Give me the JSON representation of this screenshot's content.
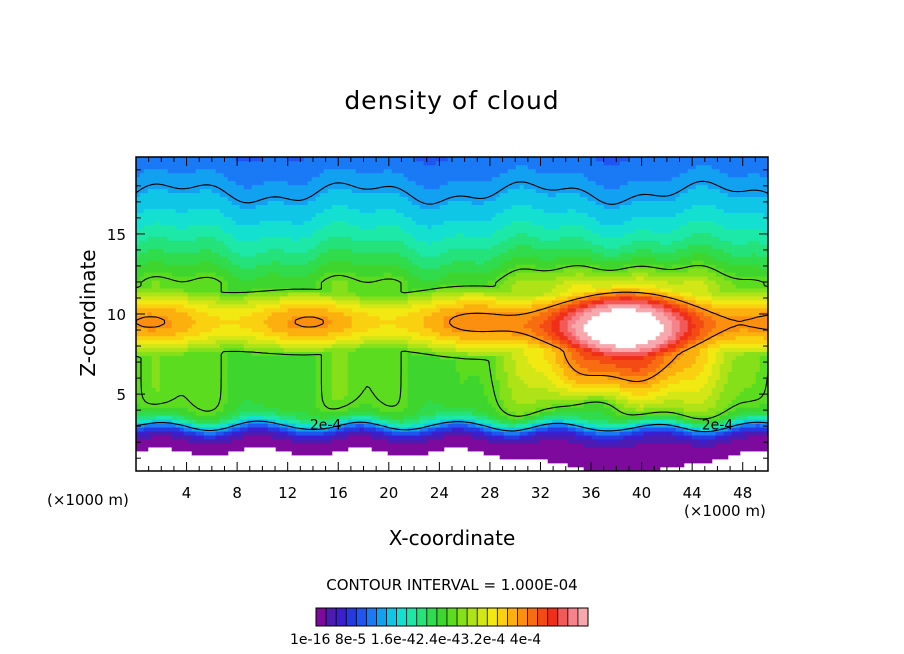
{
  "title": "density of cloud",
  "xlabel": "X-coordinate",
  "ylabel": "Z-coordinate",
  "x_unit_left": "(×1000 m)",
  "x_unit_right": "(×1000 m)",
  "contour_interval": "CONTOUR INTERVAL = 1.000E-04",
  "colorbar_labels": "1e-16 8e-5 1.6e-42.4e-43.2e-4 4e-4",
  "chart_data": {
    "type": "heatmap",
    "title": "density of cloud",
    "xlabel": "X-coordinate",
    "ylabel": "Z-coordinate",
    "x_unit": "×1000 m",
    "xlim": [
      0,
      50
    ],
    "ylim": [
      0.2,
      19.8
    ],
    "xticks": [
      4,
      8,
      12,
      16,
      20,
      24,
      28,
      32,
      36,
      40,
      44,
      48
    ],
    "yticks": [
      5,
      10,
      15
    ],
    "contour_interval": 0.0001,
    "contour_labels": [
      {
        "text": "2e-4",
        "x": 15,
        "z": 3.1
      },
      {
        "text": "2e-4",
        "x": 46,
        "z": 3.1
      }
    ],
    "max_region": {
      "x": 38.6,
      "z": 8.4,
      "value_min": 0.00041
    },
    "colorbar": {
      "min": 1e-16,
      "max": 0.0004,
      "tick_labels": [
        "1e-16",
        "8e-5",
        "1.6e-4",
        "2.4e-4",
        "3.2e-4",
        "4e-4"
      ],
      "colors": [
        "#7d0a9d",
        "#4c1bb1",
        "#3b1fcf",
        "#2638e0",
        "#1f55f0",
        "#1a79f5",
        "#12a1f0",
        "#10c6e6",
        "#14e0d2",
        "#1de8a8",
        "#25e27a",
        "#30dc4c",
        "#3ed62e",
        "#5cdc1f",
        "#85e01a",
        "#aee318",
        "#d3e616",
        "#f2e912",
        "#fad110",
        "#fbb00f",
        "#fb8f0f",
        "#f86c12",
        "#f44b14",
        "#ef2f1a",
        "#f25a5a",
        "#f6838a",
        "#f6a8ad"
      ],
      "above_max_color": "#ffffff"
    }
  }
}
